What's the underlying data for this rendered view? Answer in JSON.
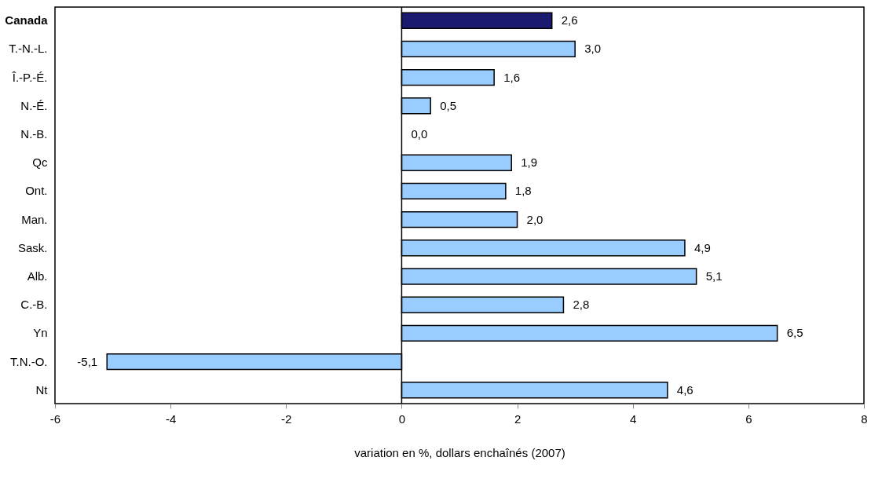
{
  "chart_data": {
    "type": "bar",
    "orientation": "horizontal",
    "xlabel": "variation en %, dollars enchaînés (2007)",
    "categories": [
      "Canada",
      "T.-N.-L.",
      "Î.-P.-É.",
      "N.-É.",
      "N.-B.",
      "Qc",
      "Ont.",
      "Man.",
      "Sask.",
      "Alb.",
      "C.-B.",
      "Yn",
      "T.N.-O.",
      "Nt"
    ],
    "values": [
      2.6,
      3.0,
      1.6,
      0.5,
      0.0,
      1.9,
      1.8,
      2.0,
      4.9,
      5.1,
      2.8,
      6.5,
      -5.1,
      4.6
    ],
    "colors": [
      "#1a1a6e",
      "#99ccff",
      "#99ccff",
      "#99ccff",
      "#99ccff",
      "#99ccff",
      "#99ccff",
      "#99ccff",
      "#99ccff",
      "#99ccff",
      "#99ccff",
      "#99ccff",
      "#99ccff",
      "#99ccff"
    ],
    "value_labels": [
      "2,6",
      "3,0",
      "1,6",
      "0,5",
      "0,0",
      "1,9",
      "1,8",
      "2,0",
      "4,9",
      "5,1",
      "2,8",
      "6,5",
      "-5,1",
      "4,6"
    ],
    "xlim": [
      -6,
      8
    ],
    "xticks": [
      -6,
      -4,
      -2,
      0,
      2,
      4,
      6,
      8
    ],
    "ref_lines": [
      {
        "axis": "x",
        "value": 0
      }
    ]
  }
}
